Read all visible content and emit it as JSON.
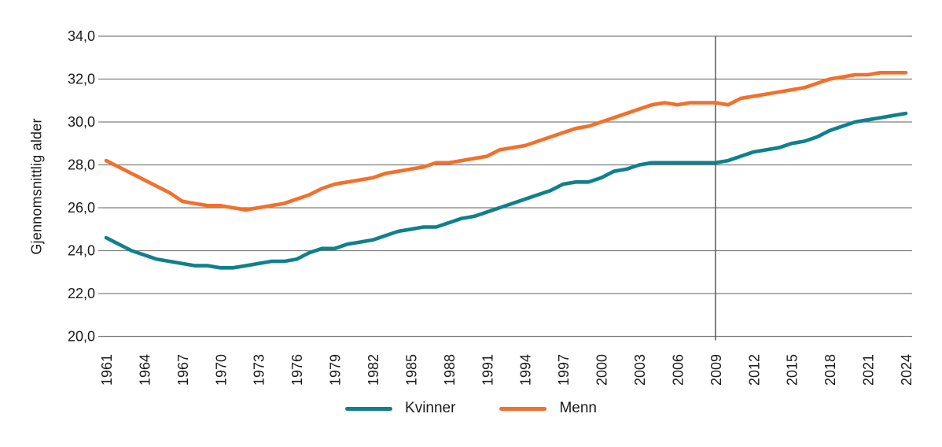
{
  "figure": {
    "background": "#FFFFFF",
    "grid_color": "#7F7F7F",
    "refline_color": "#595959",
    "text_color": "#1A1A1A"
  },
  "chart_data": {
    "type": "line",
    "title": "",
    "xlabel": "",
    "ylabel": "Gjennomsnittlig alder",
    "ylim": [
      20,
      34
    ],
    "ytick_step": 2,
    "ytick_labels": [
      "34,0",
      "32,0",
      "30,0",
      "28,0",
      "26,0",
      "24,0",
      "22,0",
      "20,0"
    ],
    "xtick_years": [
      1961,
      1964,
      1967,
      1970,
      1973,
      1976,
      1979,
      1982,
      1985,
      1988,
      1991,
      1994,
      1997,
      2000,
      2003,
      2006,
      2009,
      2012,
      2015,
      2018,
      2021,
      2024
    ],
    "x_range": [
      1961,
      2024
    ],
    "reference_line_x": 2009,
    "grid": true,
    "legend_position": "bottom",
    "x": [
      1961,
      1962,
      1963,
      1964,
      1965,
      1966,
      1967,
      1968,
      1969,
      1970,
      1971,
      1972,
      1973,
      1974,
      1975,
      1976,
      1977,
      1978,
      1979,
      1980,
      1981,
      1982,
      1983,
      1984,
      1985,
      1986,
      1987,
      1988,
      1989,
      1990,
      1991,
      1992,
      1993,
      1994,
      1995,
      1996,
      1997,
      1998,
      1999,
      2000,
      2001,
      2002,
      2003,
      2004,
      2005,
      2006,
      2007,
      2008,
      2009,
      2010,
      2011,
      2012,
      2013,
      2014,
      2015,
      2016,
      2017,
      2018,
      2019,
      2020,
      2021,
      2022,
      2023,
      2024
    ],
    "series": [
      {
        "name": "Kvinner",
        "color": "#0F808C",
        "values": [
          24.6,
          24.3,
          24.0,
          23.8,
          23.6,
          23.5,
          23.4,
          23.3,
          23.3,
          23.2,
          23.2,
          23.3,
          23.4,
          23.5,
          23.5,
          23.6,
          23.9,
          24.1,
          24.1,
          24.3,
          24.4,
          24.5,
          24.7,
          24.9,
          25.0,
          25.1,
          25.1,
          25.3,
          25.5,
          25.6,
          25.8,
          26.0,
          26.2,
          26.4,
          26.6,
          26.8,
          27.1,
          27.2,
          27.2,
          27.4,
          27.7,
          27.8,
          28.0,
          28.1,
          28.1,
          28.1,
          28.1,
          28.1,
          28.1,
          28.2,
          28.4,
          28.6,
          28.7,
          28.8,
          29.0,
          29.1,
          29.3,
          29.6,
          29.8,
          30.0,
          30.1,
          30.2,
          30.3,
          30.4
        ]
      },
      {
        "name": "Menn",
        "color": "#F2702C",
        "values": [
          28.2,
          27.9,
          27.6,
          27.3,
          27.0,
          26.7,
          26.3,
          26.2,
          26.1,
          26.1,
          26.0,
          25.9,
          26.0,
          26.1,
          26.2,
          26.4,
          26.6,
          26.9,
          27.1,
          27.2,
          27.3,
          27.4,
          27.6,
          27.7,
          27.8,
          27.9,
          28.1,
          28.1,
          28.2,
          28.3,
          28.4,
          28.7,
          28.8,
          28.9,
          29.1,
          29.3,
          29.5,
          29.7,
          29.8,
          30.0,
          30.2,
          30.4,
          30.6,
          30.8,
          30.9,
          30.8,
          30.9,
          30.9,
          30.9,
          30.8,
          31.1,
          31.2,
          31.3,
          31.4,
          31.5,
          31.6,
          31.8,
          32.0,
          32.1,
          32.2,
          32.2,
          32.3,
          32.3,
          32.3
        ]
      }
    ]
  }
}
